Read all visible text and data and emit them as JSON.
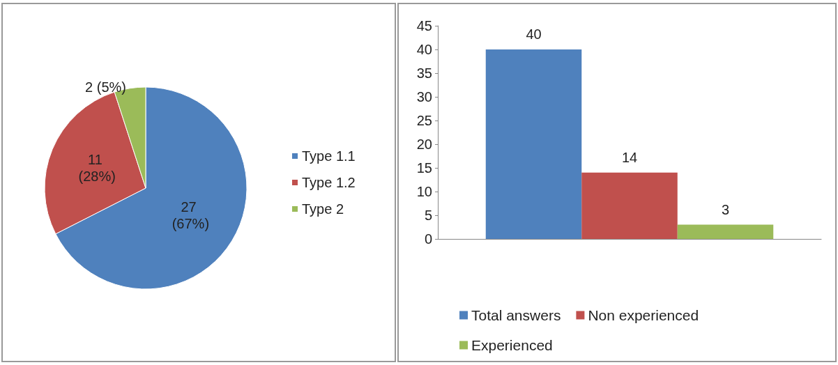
{
  "chart_data": [
    {
      "type": "pie",
      "categories": [
        "Type 1.1",
        "Type 1.2",
        "Type 2"
      ],
      "values": [
        27,
        11,
        2
      ],
      "colors": [
        "#4f81bd",
        "#c0504d",
        "#9bbb59"
      ],
      "value_labels": [
        "27 (67%)",
        "11 (28%)",
        "2 (5%)"
      ],
      "legend": "right"
    },
    {
      "type": "bar",
      "categories": [
        null
      ],
      "series": [
        {
          "name": "Total answers",
          "color": "#4f81bd",
          "values": [
            40
          ]
        },
        {
          "name": "Non experienced",
          "color": "#c0504d",
          "values": [
            14
          ]
        },
        {
          "name": "Experienced",
          "color": "#9bbb59",
          "values": [
            3
          ]
        }
      ],
      "ylim": [
        0,
        45
      ],
      "yticks": [
        0,
        5,
        10,
        15,
        20,
        25,
        30,
        35,
        40,
        45
      ],
      "grid": false,
      "data_labels": true,
      "legend": "bottom"
    }
  ]
}
